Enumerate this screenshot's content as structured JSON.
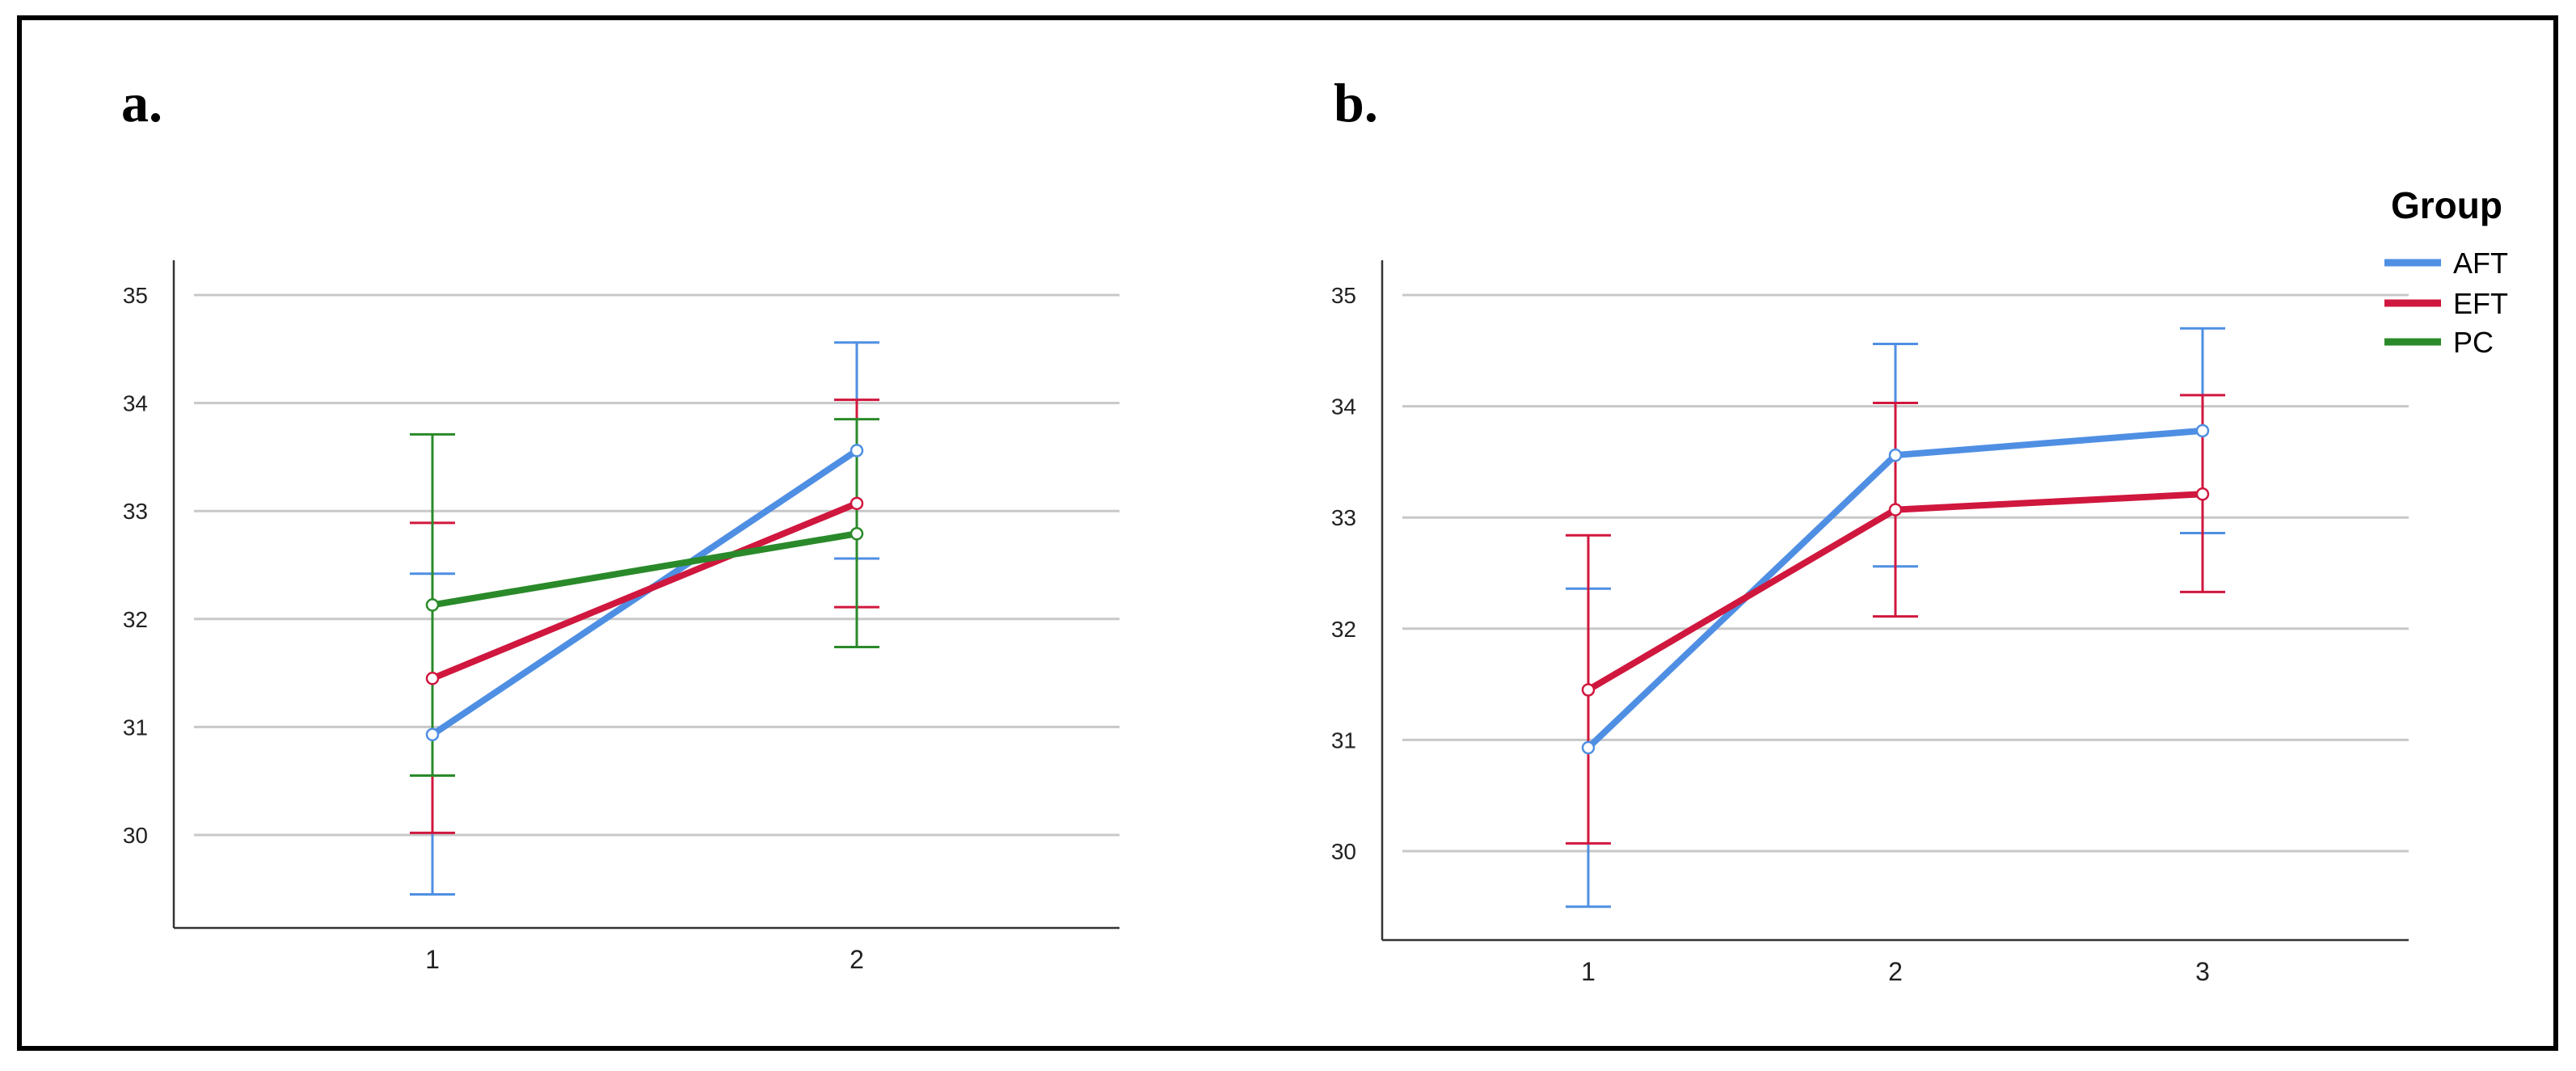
{
  "colors": {
    "AFT": "#4f8fe3",
    "EFT": "#d0173e",
    "PC": "#2a8a2a"
  },
  "legend": {
    "title": "Group",
    "items": [
      {
        "key": "AFT",
        "label": "AFT"
      },
      {
        "key": "EFT",
        "label": "EFT"
      },
      {
        "key": "PC",
        "label": "PC"
      }
    ]
  },
  "chart_data": [
    {
      "panel": "a.",
      "type": "line",
      "x": [
        "1",
        "2"
      ],
      "yticks": [
        30,
        31,
        32,
        33,
        34,
        35
      ],
      "ylim": [
        29.2,
        35.3
      ],
      "grid": "horizontal",
      "series": [
        {
          "key": "AFT",
          "name": "AFT",
          "values": [
            30.93,
            33.56
          ],
          "error_low": [
            29.45,
            32.56
          ],
          "error_high": [
            32.42,
            34.56
          ]
        },
        {
          "key": "EFT",
          "name": "EFT",
          "values": [
            31.45,
            33.07
          ],
          "error_low": [
            30.02,
            32.11
          ],
          "error_high": [
            32.89,
            34.03
          ]
        },
        {
          "key": "PC",
          "name": "PC",
          "values": [
            32.13,
            32.79
          ],
          "error_low": [
            30.55,
            31.74
          ],
          "error_high": [
            33.71,
            33.85
          ]
        }
      ]
    },
    {
      "panel": "b.",
      "type": "line",
      "x": [
        "1",
        "2",
        "3"
      ],
      "yticks": [
        30,
        31,
        32,
        33,
        34,
        35
      ],
      "ylim": [
        29.2,
        35.3
      ],
      "grid": "horizontal",
      "legend_position": "top-right",
      "series": [
        {
          "key": "AFT",
          "name": "AFT",
          "values": [
            30.93,
            33.56,
            33.78
          ],
          "error_low": [
            29.5,
            32.56,
            32.86
          ],
          "error_high": [
            32.36,
            34.56,
            34.7
          ]
        },
        {
          "key": "EFT",
          "name": "EFT",
          "values": [
            31.45,
            33.07,
            33.21
          ],
          "error_low": [
            30.07,
            32.11,
            32.33
          ],
          "error_high": [
            32.84,
            34.03,
            34.1
          ]
        }
      ]
    }
  ]
}
